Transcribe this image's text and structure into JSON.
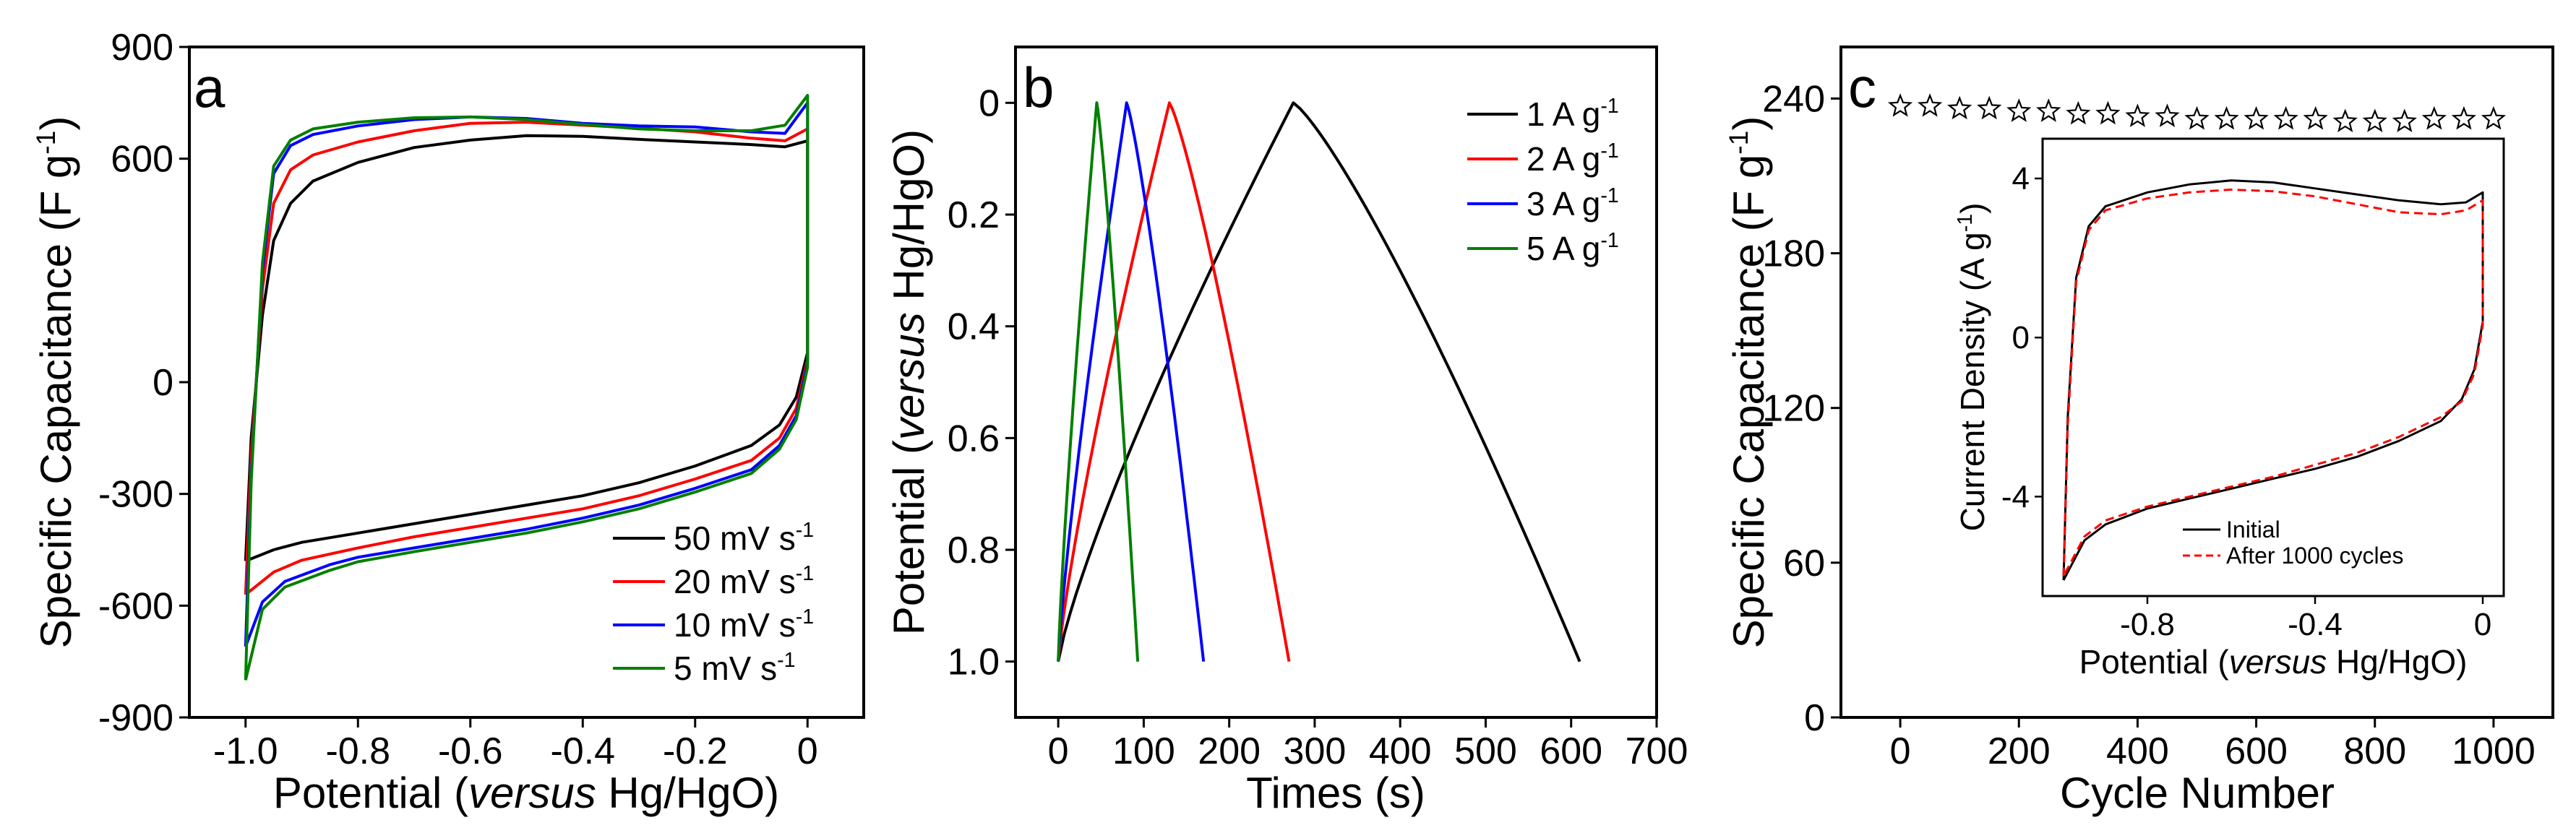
{
  "chart_data": [
    {
      "panel": "a",
      "type": "line",
      "xlabel": [
        "Potential (",
        "versus",
        " Hg/HgO)"
      ],
      "ylabel": "Specific Capacitance (F g",
      "ylabel_sup": "-1",
      "ylabel_end": ")",
      "xlim": [
        -1.1,
        0.1
      ],
      "ylim": [
        -900,
        900
      ],
      "xticks": [
        -1.0,
        -0.8,
        -0.6,
        -0.4,
        -0.2,
        0
      ],
      "xtick_labels": [
        "-1.0",
        "-0.8",
        "-0.6",
        "-0.4",
        "-0.2",
        "0"
      ],
      "yticks": [
        900,
        600,
        0,
        -300,
        -600,
        -900
      ],
      "ytick_labels": [
        "900",
        "600",
        "0",
        "-300",
        "-600",
        "-900"
      ],
      "legend_position": "bottom-right",
      "series": [
        {
          "name": "50 mV s",
          "sup": "-1",
          "color": "#000000",
          "upper": [
            [
              -1.0,
              -480
            ],
            [
              -0.99,
              -150
            ],
            [
              -0.97,
              180
            ],
            [
              -0.95,
              380
            ],
            [
              -0.92,
              480
            ],
            [
              -0.88,
              540
            ],
            [
              -0.8,
              590
            ],
            [
              -0.7,
              630
            ],
            [
              -0.6,
              650
            ],
            [
              -0.5,
              662
            ],
            [
              -0.4,
              660
            ],
            [
              -0.3,
              652
            ],
            [
              -0.2,
              645
            ],
            [
              -0.1,
              638
            ],
            [
              -0.04,
              632
            ],
            [
              0.0,
              648
            ]
          ],
          "lower": [
            [
              -1.0,
              -480
            ],
            [
              -0.95,
              -450
            ],
            [
              -0.9,
              -430
            ],
            [
              -0.8,
              -405
            ],
            [
              -0.7,
              -380
            ],
            [
              -0.6,
              -355
            ],
            [
              -0.5,
              -330
            ],
            [
              -0.4,
              -305
            ],
            [
              -0.3,
              -270
            ],
            [
              -0.2,
              -225
            ],
            [
              -0.1,
              -170
            ],
            [
              -0.05,
              -115
            ],
            [
              -0.02,
              -40
            ],
            [
              0.0,
              80
            ],
            [
              0.0,
              648
            ]
          ]
        },
        {
          "name": "20 mV s",
          "sup": "-1",
          "color": "#ff0000",
          "upper": [
            [
              -1.0,
              -570
            ],
            [
              -0.99,
              -200
            ],
            [
              -0.97,
              250
            ],
            [
              -0.95,
              480
            ],
            [
              -0.92,
              570
            ],
            [
              -0.88,
              610
            ],
            [
              -0.8,
              645
            ],
            [
              -0.7,
              675
            ],
            [
              -0.6,
              695
            ],
            [
              -0.5,
              698
            ],
            [
              -0.4,
              690
            ],
            [
              -0.3,
              682
            ],
            [
              -0.2,
              672
            ],
            [
              -0.1,
              655
            ],
            [
              -0.04,
              648
            ],
            [
              0.0,
              680
            ]
          ],
          "lower": [
            [
              -1.0,
              -570
            ],
            [
              -0.95,
              -510
            ],
            [
              -0.9,
              -478
            ],
            [
              -0.8,
              -445
            ],
            [
              -0.7,
              -415
            ],
            [
              -0.6,
              -390
            ],
            [
              -0.5,
              -365
            ],
            [
              -0.4,
              -340
            ],
            [
              -0.3,
              -305
            ],
            [
              -0.2,
              -260
            ],
            [
              -0.1,
              -210
            ],
            [
              -0.05,
              -150
            ],
            [
              -0.02,
              -70
            ],
            [
              0.0,
              60
            ],
            [
              0.0,
              680
            ]
          ]
        },
        {
          "name": "10 mV s",
          "sup": "-1",
          "color": "#0000ff",
          "upper": [
            [
              -1.0,
              -710
            ],
            [
              -0.99,
              -250
            ],
            [
              -0.97,
              300
            ],
            [
              -0.95,
              560
            ],
            [
              -0.92,
              635
            ],
            [
              -0.88,
              665
            ],
            [
              -0.8,
              688
            ],
            [
              -0.7,
              705
            ],
            [
              -0.6,
              712
            ],
            [
              -0.5,
              708
            ],
            [
              -0.4,
              695
            ],
            [
              -0.3,
              688
            ],
            [
              -0.2,
              685
            ],
            [
              -0.1,
              672
            ],
            [
              -0.04,
              668
            ],
            [
              0.0,
              750
            ]
          ],
          "lower": [
            [
              -1.0,
              -710
            ],
            [
              -0.97,
              -590
            ],
            [
              -0.93,
              -535
            ],
            [
              -0.85,
              -490
            ],
            [
              -0.8,
              -470
            ],
            [
              -0.7,
              -445
            ],
            [
              -0.6,
              -420
            ],
            [
              -0.5,
              -395
            ],
            [
              -0.4,
              -365
            ],
            [
              -0.3,
              -330
            ],
            [
              -0.2,
              -285
            ],
            [
              -0.1,
              -235
            ],
            [
              -0.05,
              -170
            ],
            [
              -0.02,
              -90
            ],
            [
              0.0,
              50
            ],
            [
              0.0,
              750
            ]
          ]
        },
        {
          "name": "5 mV s",
          "sup": "-1",
          "color": "#008000",
          "upper": [
            [
              -1.0,
              -800
            ],
            [
              -0.99,
              -270
            ],
            [
              -0.97,
              320
            ],
            [
              -0.95,
              580
            ],
            [
              -0.92,
              650
            ],
            [
              -0.88,
              680
            ],
            [
              -0.8,
              698
            ],
            [
              -0.7,
              710
            ],
            [
              -0.6,
              712
            ],
            [
              -0.5,
              705
            ],
            [
              -0.4,
              692
            ],
            [
              -0.3,
              680
            ],
            [
              -0.2,
              675
            ],
            [
              -0.1,
              675
            ],
            [
              -0.04,
              690
            ],
            [
              0.0,
              770
            ]
          ],
          "lower": [
            [
              -1.0,
              -800
            ],
            [
              -0.97,
              -610
            ],
            [
              -0.93,
              -550
            ],
            [
              -0.85,
              -505
            ],
            [
              -0.8,
              -482
            ],
            [
              -0.7,
              -455
            ],
            [
              -0.6,
              -430
            ],
            [
              -0.5,
              -405
            ],
            [
              -0.4,
              -375
            ],
            [
              -0.3,
              -340
            ],
            [
              -0.2,
              -295
            ],
            [
              -0.1,
              -245
            ],
            [
              -0.05,
              -180
            ],
            [
              -0.02,
              -100
            ],
            [
              0.0,
              40
            ],
            [
              0.0,
              770
            ]
          ]
        }
      ]
    },
    {
      "panel": "b",
      "type": "line",
      "xlabel": "Times (s)",
      "ylabel": [
        "Potential (",
        "versus",
        " Hg/HgO)"
      ],
      "xlim": [
        -50,
        700
      ],
      "ylim_reversed": [
        1.1,
        -0.1
      ],
      "xticks": [
        0,
        100,
        200,
        300,
        400,
        500,
        600,
        700
      ],
      "xtick_labels": [
        "0",
        "100",
        "200",
        "300",
        "400",
        "500",
        "600",
        "700"
      ],
      "yticks": [
        0,
        0.2,
        0.4,
        0.6,
        0.8,
        1.0
      ],
      "ytick_labels": [
        "0",
        "0.2",
        "0.4",
        "0.6",
        "0.8",
        "1.0"
      ],
      "legend_position": "top-right",
      "series": [
        {
          "name": "1 A g",
          "sup": "-1",
          "color": "#000000",
          "x": [
            0,
            275,
            610
          ],
          "y": [
            1.0,
            0.0,
            1.0
          ]
        },
        {
          "name": "2 A g",
          "sup": "-1",
          "color": "#ff0000",
          "x": [
            0,
            130,
            270
          ],
          "y": [
            1.0,
            0.0,
            1.0
          ]
        },
        {
          "name": "3 A g",
          "sup": "-1",
          "color": "#0000ff",
          "x": [
            0,
            80,
            170
          ],
          "y": [
            1.0,
            0.0,
            1.0
          ]
        },
        {
          "name": "5 A g",
          "sup": "-1",
          "color": "#008000",
          "x": [
            0,
            45,
            93
          ],
          "y": [
            1.0,
            0.0,
            1.0
          ]
        }
      ]
    },
    {
      "panel": "c",
      "type": "scatter",
      "xlabel": "Cycle Number",
      "ylabel": "Specific Capacitance (F g",
      "ylabel_sup": "-1",
      "ylabel_end": ")",
      "xlim": [
        -100,
        1100
      ],
      "ylim": [
        0,
        260
      ],
      "xticks": [
        0,
        200,
        400,
        600,
        800,
        1000
      ],
      "xtick_labels": [
        "0",
        "200",
        "400",
        "600",
        "800",
        "1000"
      ],
      "yticks": [
        0,
        60,
        120,
        180,
        240
      ],
      "ytick_labels": [
        "0",
        "60",
        "120",
        "180",
        "240"
      ],
      "marker": "open-star",
      "x": [
        0,
        50,
        100,
        150,
        200,
        250,
        300,
        350,
        400,
        450,
        500,
        550,
        600,
        650,
        700,
        750,
        800,
        850,
        900,
        950,
        1000
      ],
      "y": [
        237,
        237,
        236,
        236,
        235,
        235,
        234,
        234,
        233,
        233,
        232,
        232,
        232,
        232,
        232,
        231,
        231,
        231,
        232,
        232,
        232
      ]
    },
    {
      "panel": "c-inset",
      "type": "line",
      "xlabel": [
        "Potential (",
        "versus",
        " Hg/HgO)"
      ],
      "ylabel": "Current Density (A g",
      "ylabel_sup": "-1",
      "ylabel_end": ")",
      "xlim": [
        -1.05,
        0.05
      ],
      "ylim": [
        -6.5,
        5.0
      ],
      "xticks": [
        -0.8,
        -0.4,
        0
      ],
      "xtick_labels": [
        "-0.8",
        "-0.4",
        "0"
      ],
      "yticks": [
        4,
        0,
        -4
      ],
      "ytick_labels": [
        "4",
        "0",
        "-4"
      ],
      "legend_position": "bottom-center",
      "series": [
        {
          "name": "Initial",
          "color": "#000000",
          "style": "solid",
          "upper": [
            [
              -1.0,
              -6.1
            ],
            [
              -0.99,
              -2.0
            ],
            [
              -0.97,
              1.5
            ],
            [
              -0.94,
              2.8
            ],
            [
              -0.9,
              3.3
            ],
            [
              -0.8,
              3.65
            ],
            [
              -0.7,
              3.85
            ],
            [
              -0.6,
              3.95
            ],
            [
              -0.5,
              3.9
            ],
            [
              -0.4,
              3.75
            ],
            [
              -0.3,
              3.6
            ],
            [
              -0.2,
              3.45
            ],
            [
              -0.1,
              3.35
            ],
            [
              -0.04,
              3.4
            ],
            [
              0.0,
              3.65
            ]
          ],
          "lower": [
            [
              -1.0,
              -6.1
            ],
            [
              -0.95,
              -5.1
            ],
            [
              -0.9,
              -4.7
            ],
            [
              -0.8,
              -4.3
            ],
            [
              -0.7,
              -4.05
            ],
            [
              -0.6,
              -3.8
            ],
            [
              -0.5,
              -3.55
            ],
            [
              -0.4,
              -3.3
            ],
            [
              -0.3,
              -3.0
            ],
            [
              -0.2,
              -2.6
            ],
            [
              -0.1,
              -2.1
            ],
            [
              -0.05,
              -1.55
            ],
            [
              -0.02,
              -0.8
            ],
            [
              0.0,
              0.4
            ],
            [
              0.0,
              3.65
            ]
          ]
        },
        {
          "name": "After 1000 cycles",
          "color": "#ff0000",
          "style": "dashed",
          "upper": [
            [
              -1.0,
              -6.0
            ],
            [
              -0.99,
              -2.2
            ],
            [
              -0.97,
              1.4
            ],
            [
              -0.94,
              2.7
            ],
            [
              -0.9,
              3.2
            ],
            [
              -0.8,
              3.5
            ],
            [
              -0.7,
              3.65
            ],
            [
              -0.6,
              3.72
            ],
            [
              -0.5,
              3.68
            ],
            [
              -0.4,
              3.55
            ],
            [
              -0.3,
              3.35
            ],
            [
              -0.2,
              3.15
            ],
            [
              -0.1,
              3.1
            ],
            [
              -0.04,
              3.2
            ],
            [
              0.0,
              3.45
            ]
          ],
          "lower": [
            [
              -1.0,
              -6.0
            ],
            [
              -0.95,
              -5.0
            ],
            [
              -0.9,
              -4.6
            ],
            [
              -0.8,
              -4.25
            ],
            [
              -0.7,
              -4.0
            ],
            [
              -0.6,
              -3.75
            ],
            [
              -0.5,
              -3.5
            ],
            [
              -0.4,
              -3.2
            ],
            [
              -0.3,
              -2.9
            ],
            [
              -0.2,
              -2.5
            ],
            [
              -0.1,
              -2.0
            ],
            [
              -0.05,
              -1.6
            ],
            [
              -0.02,
              -0.9
            ],
            [
              0.0,
              0.3
            ],
            [
              0.0,
              3.45
            ]
          ]
        }
      ]
    }
  ]
}
